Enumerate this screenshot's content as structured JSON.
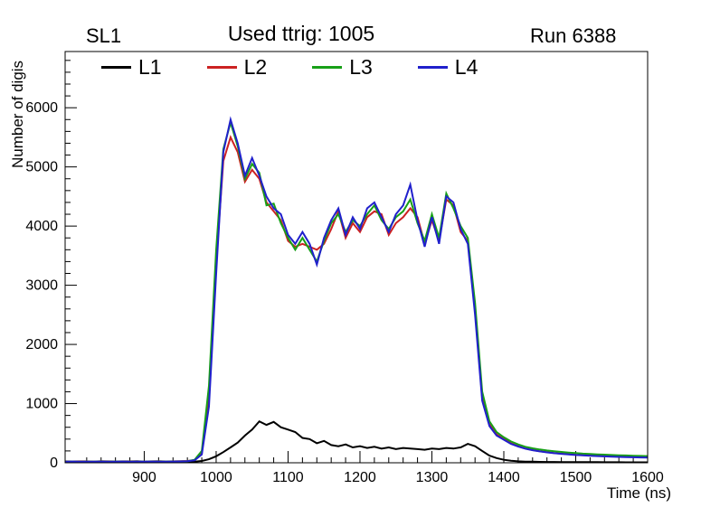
{
  "header": {
    "title_left": "SL1",
    "title_center": "Used ttrig: 1005",
    "title_right": "Run 6388"
  },
  "chart_data": {
    "type": "line",
    "title": "Used ttrig: 1005",
    "xlabel": "Time (ns)",
    "ylabel": "Number of digis",
    "xlim": [
      790,
      1600
    ],
    "ylim": [
      0,
      6950
    ],
    "xticks": [
      900,
      1000,
      1100,
      1200,
      1300,
      1400,
      1500,
      1600
    ],
    "yticks": [
      0,
      1000,
      2000,
      3000,
      4000,
      5000,
      6000
    ],
    "x_minor_step": 20,
    "y_minor_step": 200,
    "grid": false,
    "legend_position": "top-inside",
    "x": [
      790,
      800,
      810,
      820,
      830,
      840,
      850,
      860,
      870,
      880,
      890,
      900,
      910,
      920,
      930,
      940,
      950,
      960,
      970,
      980,
      990,
      1000,
      1010,
      1020,
      1030,
      1040,
      1050,
      1060,
      1070,
      1080,
      1090,
      1100,
      1110,
      1120,
      1130,
      1140,
      1150,
      1160,
      1170,
      1180,
      1190,
      1200,
      1210,
      1220,
      1230,
      1240,
      1250,
      1260,
      1270,
      1280,
      1290,
      1300,
      1310,
      1320,
      1330,
      1340,
      1350,
      1360,
      1370,
      1380,
      1390,
      1400,
      1410,
      1420,
      1430,
      1440,
      1450,
      1460,
      1470,
      1480,
      1490,
      1500,
      1510,
      1520,
      1530,
      1540,
      1550,
      1560,
      1570,
      1580,
      1590,
      1600
    ],
    "series": [
      {
        "name": "L1",
        "color": "#000000",
        "values": [
          9,
          10,
          8,
          8,
          10,
          9,
          11,
          10,
          9,
          10,
          12,
          10,
          11,
          10,
          12,
          11,
          13,
          15,
          20,
          30,
          60,
          110,
          180,
          260,
          340,
          460,
          560,
          700,
          640,
          690,
          600,
          560,
          520,
          420,
          400,
          330,
          370,
          300,
          280,
          310,
          260,
          280,
          250,
          270,
          240,
          260,
          230,
          250,
          240,
          230,
          220,
          240,
          230,
          250,
          240,
          260,
          320,
          280,
          200,
          120,
          80,
          50,
          35,
          25,
          20,
          18,
          15,
          14,
          13,
          12,
          12,
          11,
          10,
          10,
          10,
          9,
          9,
          9,
          8,
          8,
          8,
          8
        ]
      },
      {
        "name": "L2",
        "color": "#cc2222",
        "values": [
          24,
          23,
          25,
          25,
          22,
          26,
          24,
          23,
          25,
          24,
          26,
          22,
          25,
          26,
          23,
          25,
          27,
          30,
          45,
          160,
          1100,
          3400,
          5100,
          5500,
          5250,
          4750,
          4950,
          4800,
          4400,
          4250,
          4100,
          3750,
          3650,
          3700,
          3650,
          3600,
          3700,
          3950,
          4250,
          3800,
          4050,
          3900,
          4150,
          4250,
          4200,
          3850,
          4050,
          4150,
          4300,
          4150,
          3700,
          4100,
          3750,
          4450,
          4350,
          3900,
          3750,
          2600,
          1100,
          650,
          480,
          400,
          330,
          280,
          240,
          215,
          195,
          180,
          165,
          155,
          145,
          135,
          128,
          122,
          116,
          112,
          108,
          104,
          100,
          97,
          94,
          92
        ]
      },
      {
        "name": "L3",
        "color": "#18a018",
        "values": [
          21,
          22,
          20,
          22,
          20,
          24,
          21,
          22,
          23,
          22,
          24,
          20,
          23,
          24,
          21,
          23,
          25,
          28,
          50,
          200,
          1300,
          3600,
          5300,
          5750,
          5350,
          4800,
          5050,
          4900,
          4350,
          4380,
          4050,
          3800,
          3600,
          3800,
          3600,
          3400,
          3750,
          4050,
          4200,
          3900,
          4100,
          4000,
          4200,
          4350,
          4100,
          3950,
          4150,
          4250,
          4450,
          4050,
          3750,
          4200,
          3800,
          4550,
          4300,
          4000,
          3800,
          2700,
          1200,
          700,
          520,
          430,
          360,
          310,
          270,
          245,
          225,
          208,
          195,
          183,
          172,
          163,
          155,
          148,
          142,
          137,
          132,
          127,
          123,
          119,
          116,
          113
        ]
      },
      {
        "name": "L4",
        "color": "#2020cc",
        "values": [
          19,
          21,
          20,
          20,
          18,
          22,
          20,
          19,
          21,
          20,
          22,
          18,
          21,
          22,
          19,
          21,
          23,
          26,
          42,
          140,
          950,
          3200,
          5250,
          5800,
          5400,
          4850,
          5150,
          4850,
          4500,
          4300,
          4200,
          3850,
          3700,
          3900,
          3700,
          3350,
          3800,
          4100,
          4300,
          3850,
          4150,
          3950,
          4300,
          4400,
          4150,
          3900,
          4200,
          4350,
          4700,
          4100,
          3650,
          4150,
          3700,
          4500,
          4400,
          3950,
          3700,
          2500,
          1050,
          620,
          460,
          390,
          320,
          275,
          238,
          212,
          192,
          176,
          162,
          151,
          141,
          132,
          125,
          119,
          113,
          108,
          104,
          100,
          96,
          93,
          90,
          88
        ]
      }
    ]
  }
}
